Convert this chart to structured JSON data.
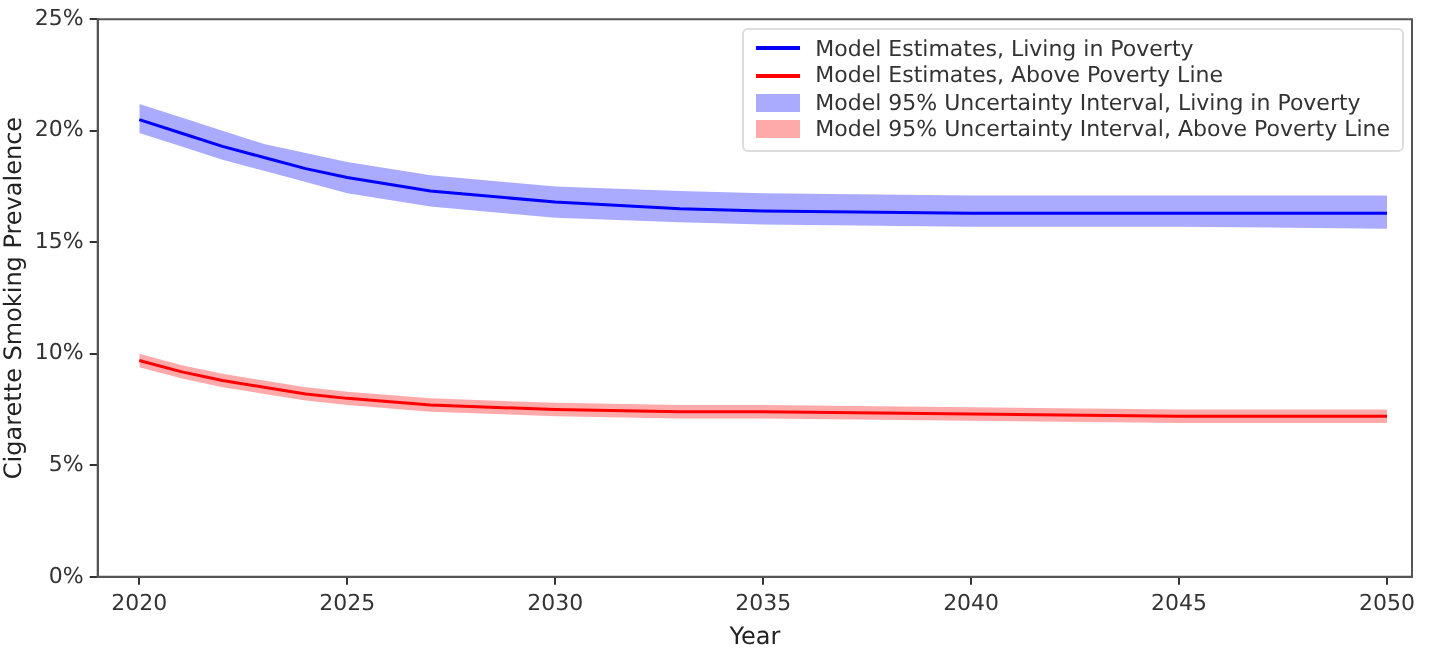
{
  "chart_data": {
    "type": "line",
    "xlabel": "Year",
    "ylabel": "Cigarette Smoking Prevalence",
    "legend": "top right",
    "grid": false,
    "marker": "none",
    "line_style": "solid",
    "x": [
      2020,
      2021,
      2022,
      2023,
      2024,
      2025,
      2027,
      2030,
      2033,
      2035,
      2040,
      2045,
      2050
    ],
    "xlim": [
      2019,
      2050.6
    ],
    "xticks": [
      2020,
      2025,
      2030,
      2035,
      2040,
      2045,
      2050
    ],
    "ylim": [
      0,
      25
    ],
    "yticks": [
      {
        "value": 0,
        "label": "0%"
      },
      {
        "value": 5,
        "label": "5%"
      },
      {
        "value": 10,
        "label": "10%"
      },
      {
        "value": 15,
        "label": "15%"
      },
      {
        "value": 20,
        "label": "20%"
      },
      {
        "value": 25,
        "label": "25%"
      }
    ],
    "annotations": [
      "Model 95% Uncertainty Interval, Living in Poverty",
      "Model 95% Uncertainty Interval, Above Poverty Line"
    ],
    "series": [
      {
        "name": "Model Estimates, Living in Poverty",
        "type": "line",
        "color": "#0000ff",
        "values": [
          20.5,
          19.9,
          19.3,
          18.8,
          18.3,
          17.9,
          17.3,
          16.8,
          16.5,
          16.4,
          16.3,
          16.3,
          16.3
        ],
        "lower": [
          19.9,
          19.3,
          18.7,
          18.2,
          17.7,
          17.2,
          16.6,
          16.1,
          15.9,
          15.8,
          15.7,
          15.7,
          15.6
        ],
        "upper": [
          21.2,
          20.6,
          20.0,
          19.4,
          19.0,
          18.6,
          18.0,
          17.5,
          17.3,
          17.2,
          17.1,
          17.1,
          17.1
        ]
      },
      {
        "name": "Model Estimates, Above Poverty Line",
        "type": "line",
        "color": "#ff0000",
        "values": [
          9.7,
          9.2,
          8.8,
          8.5,
          8.2,
          8.0,
          7.7,
          7.5,
          7.4,
          7.4,
          7.3,
          7.2,
          7.2
        ],
        "lower": [
          9.4,
          8.9,
          8.5,
          8.2,
          7.9,
          7.7,
          7.4,
          7.2,
          7.1,
          7.1,
          7.0,
          6.9,
          6.9
        ],
        "upper": [
          10.0,
          9.5,
          9.1,
          8.8,
          8.5,
          8.3,
          8.0,
          7.8,
          7.7,
          7.7,
          7.6,
          7.5,
          7.5
        ]
      }
    ]
  }
}
